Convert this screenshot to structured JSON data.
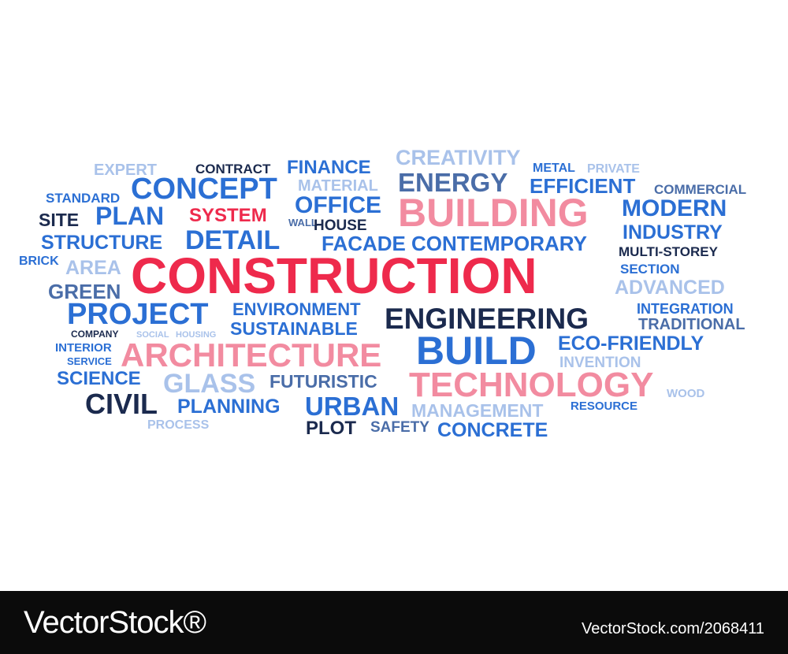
{
  "words": [
    "CONSTRUCTION",
    "BUILDING",
    "ARCHITECTURE",
    "TECHNOLOGY",
    "BUILD",
    "ENGINEERING",
    "CONCEPT",
    "PLAN",
    "DETAIL",
    "PROJECT",
    "SYSTEM",
    "CREATIVITY",
    "ENERGY",
    "FINANCE",
    "OFFICE",
    "EFFICIENT",
    "MODERN",
    "INDUSTRY",
    "CONTEMPORARY",
    "FACADE",
    "STRUCTURE",
    "STANDARD",
    "EXPERT",
    "CONTRACT",
    "MATERIAL",
    "METAL",
    "PRIVATE",
    "COMMERCIAL",
    "SITE",
    "WALL",
    "HOUSE",
    "MULTI-STOREY",
    "BRICK",
    "AREA",
    "SECTION",
    "GREEN",
    "ADVANCED",
    "ENVIRONMENT",
    "INTEGRATION",
    "SUSTAINABLE",
    "TRADITIONAL",
    "COMPANY",
    "SOCIAL",
    "HOUSING",
    "INTERIOR",
    "ECO-FRIENDLY",
    "SERVICE",
    "INVENTION",
    "SCIENCE",
    "GLASS",
    "FUTURISTIC",
    "WOOD",
    "CIVIL",
    "PLANNING",
    "URBAN",
    "MANAGEMENT",
    "RESOURCE",
    "PROCESS",
    "PLOT",
    "SAFETY",
    "CONCRETE"
  ],
  "footer": {
    "brand": "VectorStock®",
    "credit": "VectorStock.com/2068411"
  },
  "colors": {
    "red": "#ee2a4c",
    "pink": "#f28ba0",
    "blue": "#2b6fd4",
    "mid_blue": "#4b7cc8",
    "navy": "#1b2a4e",
    "slate": "#4a6da8",
    "light_blue": "#a9c2ea",
    "footer_bg": "#0b0b0b",
    "footer_text": "#ffffff"
  }
}
